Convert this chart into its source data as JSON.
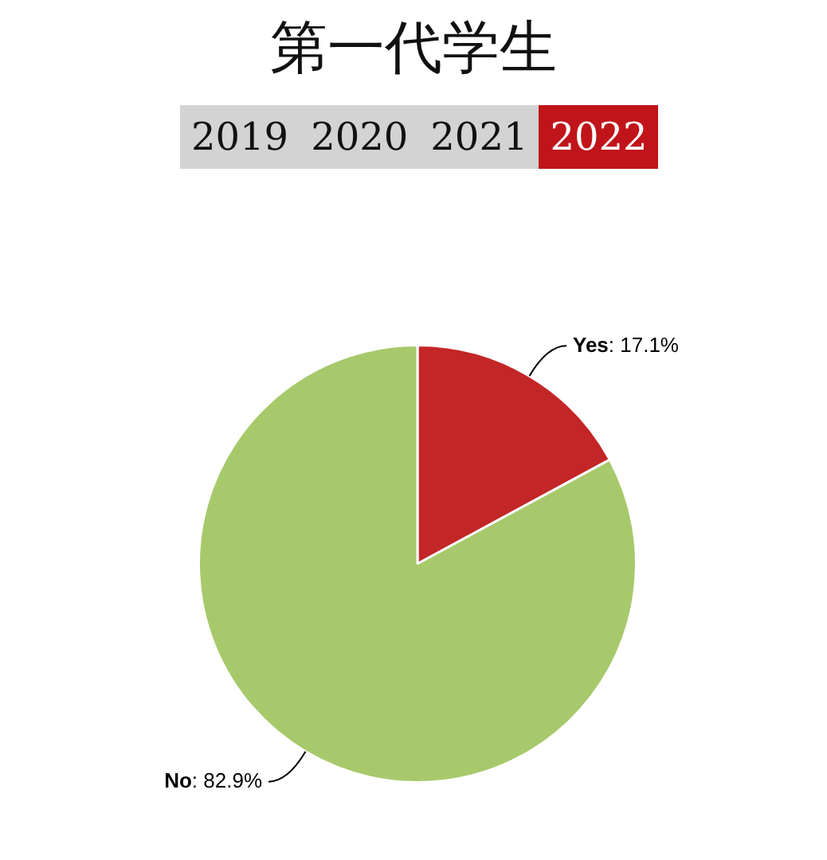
{
  "chart_data": {
    "type": "pie",
    "title": "第一代学生",
    "annotations": [
      "2019",
      "2020",
      "2021",
      "2022"
    ],
    "categories": [
      "Yes",
      "No"
    ],
    "values": [
      17.1,
      82.9
    ],
    "value_labels": [
      ": 17.1%",
      ": 82.9%"
    ],
    "colors": [
      "#c32626",
      "#a7c96b"
    ],
    "legend": false
  }
}
